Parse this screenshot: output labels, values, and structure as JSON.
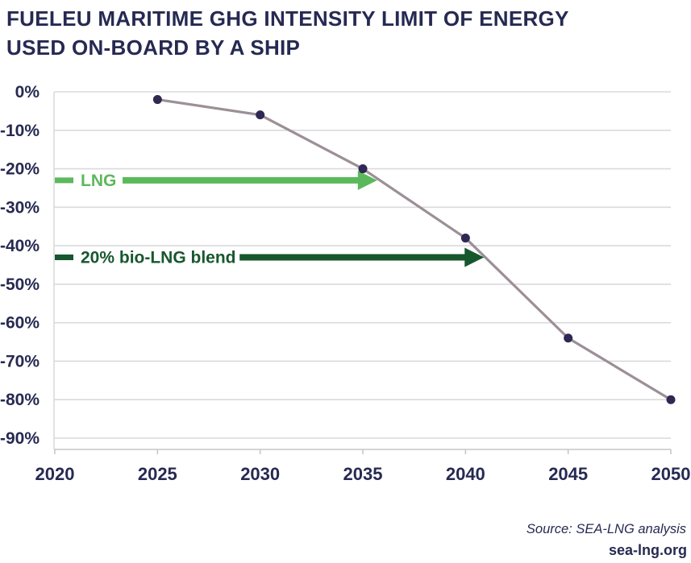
{
  "title": {
    "line1": "FUELEU MARITIME GHG INTENSITY LIMIT OF ENERGY",
    "line2": "USED ON-BOARD BY A SHIP"
  },
  "footer": {
    "source": "Source: SEA-LNG analysis",
    "website": "sea-lng.org"
  },
  "colors": {
    "navy_text": "#262A52",
    "grid": "#DADADE",
    "axis": "#C6C6CA",
    "line": "#9C8F97",
    "marker": "#2E2852",
    "lng_green": "#5CB85C",
    "bio_green": "#17572E"
  },
  "chart_data": {
    "type": "line",
    "title": "FuelEU Maritime GHG intensity limit of energy used on-board by a ship",
    "series_name": "FuelEU Maritime GHG intensity limit",
    "x": [
      2025,
      2030,
      2035,
      2040,
      2045,
      2050
    ],
    "values": [
      -2,
      -6,
      -20,
      -38,
      -64,
      -80
    ],
    "xlabel": "",
    "ylabel": "",
    "xlim": [
      2020,
      2050
    ],
    "ylim": [
      0,
      -90
    ],
    "xticks": [
      2020,
      2025,
      2030,
      2035,
      2040,
      2045,
      2050
    ],
    "yticks": [
      0,
      -10,
      -20,
      -30,
      -40,
      -50,
      -60,
      -70,
      -80,
      -90
    ],
    "ytick_labels": [
      "0%",
      "-10%",
      "-20%",
      "-30%",
      "-40%",
      "-50%",
      "-60%",
      "-70%",
      "-80%",
      "-90%"
    ],
    "grid": true,
    "legend": false,
    "annotations": [
      {
        "id": "lng",
        "label": "LNG",
        "value_pct": -23,
        "start_year": 2020,
        "shaft_start_year": 2023.3,
        "end_year": 2035.7,
        "color": "#5CB85C"
      },
      {
        "id": "bio-lng-blend",
        "label": "20% bio-LNG blend",
        "value_pct": -43,
        "start_year": 2020,
        "shaft_start_year": 2029,
        "end_year": 2040.9,
        "color": "#17572E"
      }
    ]
  }
}
